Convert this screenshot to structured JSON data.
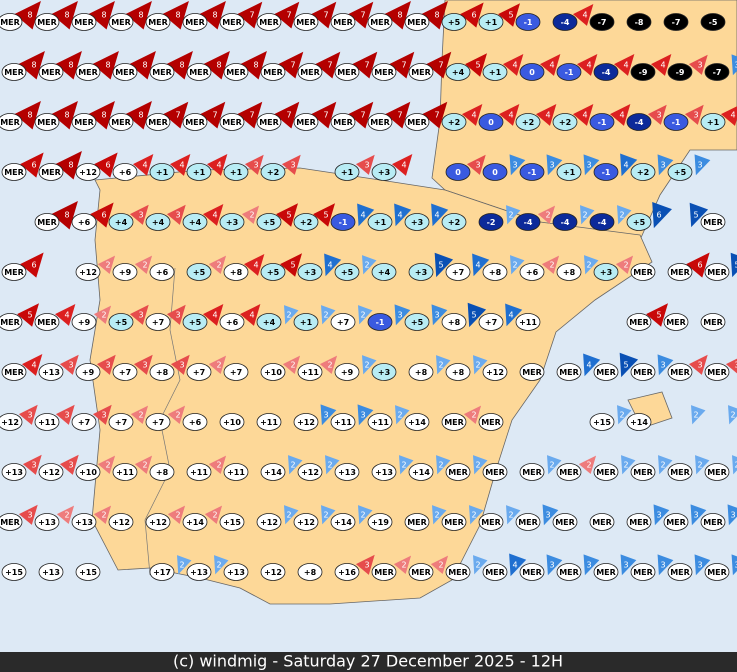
{
  "map": {
    "copyright": "(c) windmig - Saturday 27 December 2025 - 12H",
    "rows": [
      [
        {
          "t": "MER",
          "w": 8
        },
        {
          "t": "MER",
          "w": 8
        },
        {
          "t": "MER",
          "w": 8
        },
        {
          "t": "MER",
          "w": 8
        },
        {
          "t": "MER",
          "w": 8
        },
        {
          "t": "MER",
          "w": 8
        },
        {
          "t": "MER",
          "w": 7
        },
        {
          "t": "MER",
          "w": 7
        },
        {
          "t": "MER",
          "w": 7
        },
        {
          "t": "MER",
          "w": 7
        },
        {
          "t": "MER",
          "w": 8
        },
        {
          "t": "MER",
          "w": 8
        },
        {
          "t": "+5",
          "w": 6
        },
        {
          "t": "+1",
          "w": 5
        },
        {
          "t": "-1"
        },
        {
          "t": "-4",
          "w": 4
        },
        {
          "t": "-7"
        },
        {
          "t": "-8"
        },
        {
          "t": "-7"
        },
        {
          "t": "-5"
        }
      ],
      [
        {
          "t": "MER",
          "w": 8
        },
        {
          "t": "MER",
          "w": 8
        },
        {
          "t": "MER",
          "w": 8
        },
        {
          "t": "MER",
          "w": 8
        },
        {
          "t": "MER",
          "w": 8
        },
        {
          "t": "MER",
          "w": 8
        },
        {
          "t": "MER",
          "w": 8
        },
        {
          "t": "MER",
          "w": 7
        },
        {
          "t": "MER",
          "w": 7
        },
        {
          "t": "MER",
          "w": 7
        },
        {
          "t": "MER",
          "w": 7
        },
        {
          "t": "MER",
          "w": 7
        },
        {
          "t": "+4",
          "w": 5
        },
        {
          "t": "+1",
          "w": 4
        },
        {
          "t": "0",
          "w": 4
        },
        {
          "t": "-1",
          "w": 4
        },
        {
          "t": "-4",
          "w": 4
        },
        {
          "t": "-9",
          "w": 4
        },
        {
          "t": "-9",
          "w": 3
        },
        {
          "t": "-7",
          "w": 3,
          "from": "east"
        }
      ],
      [
        {
          "t": "MER",
          "w": 8
        },
        {
          "t": "MER",
          "w": 8
        },
        {
          "t": "MER",
          "w": 8
        },
        {
          "t": "MER",
          "w": 8
        },
        {
          "t": "MER",
          "w": 7
        },
        {
          "t": "MER",
          "w": 7
        },
        {
          "t": "MER",
          "w": 7
        },
        {
          "t": "MER",
          "w": 7
        },
        {
          "t": "MER",
          "w": 7
        },
        {
          "t": "MER",
          "w": 7
        },
        {
          "t": "MER",
          "w": 7
        },
        {
          "t": "MER",
          "w": 7
        },
        {
          "t": "+2",
          "w": 4
        },
        {
          "t": "0",
          "w": 4
        },
        {
          "t": "+2",
          "w": 4
        },
        {
          "t": "+2",
          "w": 4
        },
        {
          "t": "-1",
          "w": 4
        },
        {
          "t": "-4",
          "w": 3
        },
        {
          "t": "-1",
          "w": 3
        },
        {
          "t": "+1",
          "w": 4
        }
      ],
      [
        {
          "t": "MER",
          "w": 6
        },
        {
          "t": "MER",
          "w": 8
        },
        {
          "t": "+12",
          "w": 6
        },
        {
          "t": "+6",
          "w": 4
        },
        {
          "t": "+1",
          "w": 4
        },
        {
          "t": "+1",
          "w": 4
        },
        {
          "t": "+1",
          "w": 3
        },
        {
          "t": "+2",
          "w": 3
        },
        null,
        {
          "t": "+1",
          "w": 3
        },
        {
          "t": "+3",
          "w": 4
        },
        null,
        {
          "t": "0",
          "w": 3
        },
        {
          "t": "0",
          "w": 3,
          "from": "east"
        },
        {
          "t": "-1",
          "w": 3,
          "from": "east"
        },
        {
          "t": "+1",
          "w": 3,
          "from": "east"
        },
        {
          "t": "-1",
          "w": 4,
          "from": "east"
        },
        {
          "t": "+2",
          "w": 3,
          "from": "east"
        },
        {
          "t": "+5",
          "w": 3,
          "from": "east"
        },
        null
      ],
      [
        null,
        {
          "t": "MER",
          "w": 8
        },
        {
          "t": "+6",
          "w": 6
        },
        {
          "t": "+4",
          "w": 3
        },
        {
          "t": "+4",
          "w": 3
        },
        {
          "t": "+4",
          "w": 4
        },
        {
          "t": "+3",
          "w": 2
        },
        {
          "t": "+5",
          "w": 5
        },
        {
          "t": "+2",
          "w": 5
        },
        {
          "t": "-1",
          "w": 4,
          "from": "east"
        },
        {
          "t": "+1",
          "w": 4,
          "from": "east"
        },
        {
          "t": "+3",
          "w": 4,
          "from": "east"
        },
        {
          "t": "+2"
        },
        {
          "t": "-2",
          "w": 2,
          "from": "east"
        },
        {
          "t": "-4",
          "w": 2
        },
        {
          "t": "-4",
          "w": 2,
          "from": "east"
        },
        {
          "t": "-4",
          "w": 2,
          "from": "east"
        },
        {
          "t": "+5",
          "w": 6,
          "from": "east"
        },
        {
          "w": 5,
          "from": "east"
        },
        {
          "t": "MER"
        }
      ],
      [
        {
          "t": "MER",
          "w": 6
        },
        null,
        {
          "t": "+12",
          "w": 2
        },
        {
          "t": "+9",
          "w": 2
        },
        {
          "t": "+6"
        },
        {
          "t": "+5",
          "w": 2
        },
        {
          "t": "+8",
          "w": 4
        },
        {
          "t": "+5",
          "w": 5
        },
        {
          "t": "+3",
          "w": 4,
          "from": "east"
        },
        {
          "t": "+5",
          "w": 2,
          "from": "east"
        },
        {
          "t": "+4"
        },
        {
          "t": "+3",
          "w": 5,
          "from": "east"
        },
        {
          "t": "+7",
          "w": 4,
          "from": "east"
        },
        {
          "t": "+8",
          "w": 2,
          "from": "east"
        },
        {
          "t": "+6",
          "w": 2
        },
        {
          "t": "+8",
          "w": 2,
          "from": "east"
        },
        {
          "t": "+3",
          "w": 2
        },
        {
          "t": "MER"
        },
        {
          "t": "MER",
          "w": 6
        },
        {
          "t": "MER",
          "w": 5,
          "from": "east"
        }
      ],
      [
        {
          "t": "MER",
          "w": 5
        },
        {
          "t": "MER",
          "w": 4
        },
        {
          "t": "+9",
          "w": 2
        },
        {
          "t": "+5",
          "w": 3
        },
        {
          "t": "+7",
          "w": 3
        },
        {
          "t": "+5",
          "w": 4
        },
        {
          "t": "+6",
          "w": 4
        },
        {
          "t": "+4",
          "w": 2,
          "from": "east"
        },
        {
          "t": "+1",
          "w": 2,
          "from": "east"
        },
        {
          "t": "+7",
          "w": 2,
          "from": "east"
        },
        {
          "t": "-1",
          "w": 3,
          "from": "east"
        },
        {
          "t": "+5",
          "w": 3,
          "from": "east"
        },
        {
          "t": "+8",
          "w": 5,
          "from": "east"
        },
        {
          "t": "+7",
          "w": 4,
          "from": "east"
        },
        {
          "t": "+11"
        },
        null,
        null,
        {
          "t": "MER",
          "w": 5
        },
        {
          "t": "MER"
        },
        {
          "t": "MER"
        }
      ],
      [
        {
          "t": "MER",
          "w": 4
        },
        {
          "t": "+13",
          "w": 3
        },
        {
          "t": "+9",
          "w": 3
        },
        {
          "t": "+7",
          "w": 3
        },
        {
          "t": "+8",
          "w": 3
        },
        {
          "t": "+7",
          "w": 2
        },
        {
          "t": "+7"
        },
        {
          "t": "+10",
          "w": 2
        },
        {
          "t": "+11",
          "w": 2
        },
        {
          "t": "+9",
          "w": 2,
          "from": "east"
        },
        {
          "t": "+3"
        },
        {
          "t": "+8",
          "w": 2,
          "from": "east"
        },
        {
          "t": "+8",
          "w": 2,
          "from": "east"
        },
        {
          "t": "+12"
        },
        {
          "t": "MER"
        },
        {
          "t": "MER",
          "w": 4,
          "from": "east"
        },
        {
          "t": "MER",
          "w": 5,
          "from": "east"
        },
        {
          "t": "MER",
          "w": 3,
          "from": "east"
        },
        {
          "t": "MER",
          "w": 3
        },
        {
          "t": "MER",
          "w": 3
        }
      ],
      [
        {
          "t": "+12",
          "w": 3
        },
        {
          "t": "+11",
          "w": 3
        },
        {
          "t": "+7",
          "w": 3
        },
        {
          "t": "+7",
          "w": 2
        },
        {
          "t": "+7",
          "w": 2
        },
        {
          "t": "+6"
        },
        {
          "t": "+10"
        },
        {
          "t": "+11"
        },
        {
          "t": "+12",
          "w": 3,
          "from": "east"
        },
        {
          "t": "+11",
          "w": 3,
          "from": "east"
        },
        {
          "t": "+11",
          "w": 2,
          "from": "east"
        },
        {
          "t": "+14"
        },
        {
          "t": "MER",
          "w": 2
        },
        {
          "t": "MER"
        },
        null,
        null,
        {
          "t": "+15",
          "w": 2,
          "from": "east"
        },
        {
          "t": "+14"
        },
        {
          "w": 2,
          "from": "east"
        },
        {
          "w": 2,
          "from": "east"
        }
      ],
      [
        {
          "t": "+13",
          "w": 3
        },
        {
          "t": "+12",
          "w": 3
        },
        {
          "t": "+10",
          "w": 2
        },
        {
          "t": "+11",
          "w": 2
        },
        {
          "t": "+8"
        },
        {
          "t": "+11",
          "w": 2
        },
        {
          "t": "+11"
        },
        {
          "t": "+14",
          "w": 2,
          "from": "east"
        },
        {
          "t": "+12",
          "w": 2,
          "from": "east"
        },
        {
          "t": "+13"
        },
        {
          "t": "+13",
          "w": 2,
          "from": "east"
        },
        {
          "t": "+14",
          "w": 2,
          "from": "east"
        },
        {
          "t": "MER",
          "w": 2,
          "from": "east"
        },
        {
          "t": "MER"
        },
        {
          "t": "MER",
          "w": 2,
          "from": "east"
        },
        {
          "t": "MER",
          "w": 2
        },
        {
          "t": "MER",
          "w": 2,
          "from": "east"
        },
        {
          "t": "MER",
          "w": 2,
          "from": "east"
        },
        {
          "t": "MER",
          "w": 2,
          "from": "east"
        },
        {
          "t": "MER",
          "w": 2,
          "from": "east"
        }
      ],
      [
        {
          "t": "MER",
          "w": 3
        },
        {
          "t": "+13",
          "w": 2
        },
        {
          "t": "+13",
          "w": 2
        },
        {
          "t": "+12"
        },
        {
          "t": "+12",
          "w": 2
        },
        {
          "t": "+14",
          "w": 2
        },
        {
          "t": "+15"
        },
        {
          "t": "+12",
          "w": 2,
          "from": "east"
        },
        {
          "t": "+12",
          "w": 2,
          "from": "east"
        },
        {
          "t": "+14",
          "w": 2,
          "from": "east"
        },
        {
          "t": "+19"
        },
        {
          "t": "MER",
          "w": 2,
          "from": "east"
        },
        {
          "t": "MER",
          "w": 2,
          "from": "east"
        },
        {
          "t": "MER",
          "w": 2,
          "from": "east"
        },
        {
          "t": "MER",
          "w": 3,
          "from": "east"
        },
        {
          "t": "MER"
        },
        {
          "t": "MER"
        },
        {
          "t": "MER",
          "w": 3,
          "from": "east"
        },
        {
          "t": "MER",
          "w": 3,
          "from": "east"
        },
        {
          "t": "MER",
          "w": 3,
          "from": "east"
        }
      ],
      [
        {
          "t": "+15"
        },
        {
          "t": "+13"
        },
        {
          "t": "+15"
        },
        null,
        {
          "t": "+17",
          "w": 2,
          "from": "east"
        },
        {
          "t": "+13",
          "w": 2,
          "from": "east"
        },
        {
          "t": "+13"
        },
        {
          "t": "+12"
        },
        {
          "t": "+8"
        },
        {
          "t": "+16",
          "w": 3
        },
        {
          "t": "MER",
          "w": 2
        },
        {
          "t": "MER",
          "w": 2
        },
        {
          "t": "MER",
          "w": 2,
          "from": "east"
        },
        {
          "t": "MER",
          "w": 4,
          "from": "east"
        },
        {
          "t": "MER",
          "w": 3,
          "from": "east"
        },
        {
          "t": "MER",
          "w": 3,
          "from": "east"
        },
        {
          "t": "MER",
          "w": 3,
          "from": "east"
        },
        {
          "t": "MER",
          "w": 3,
          "from": "east"
        },
        {
          "t": "MER",
          "w": 3,
          "from": "east"
        },
        {
          "t": "MER",
          "w": 3,
          "from": "east"
        }
      ]
    ]
  }
}
